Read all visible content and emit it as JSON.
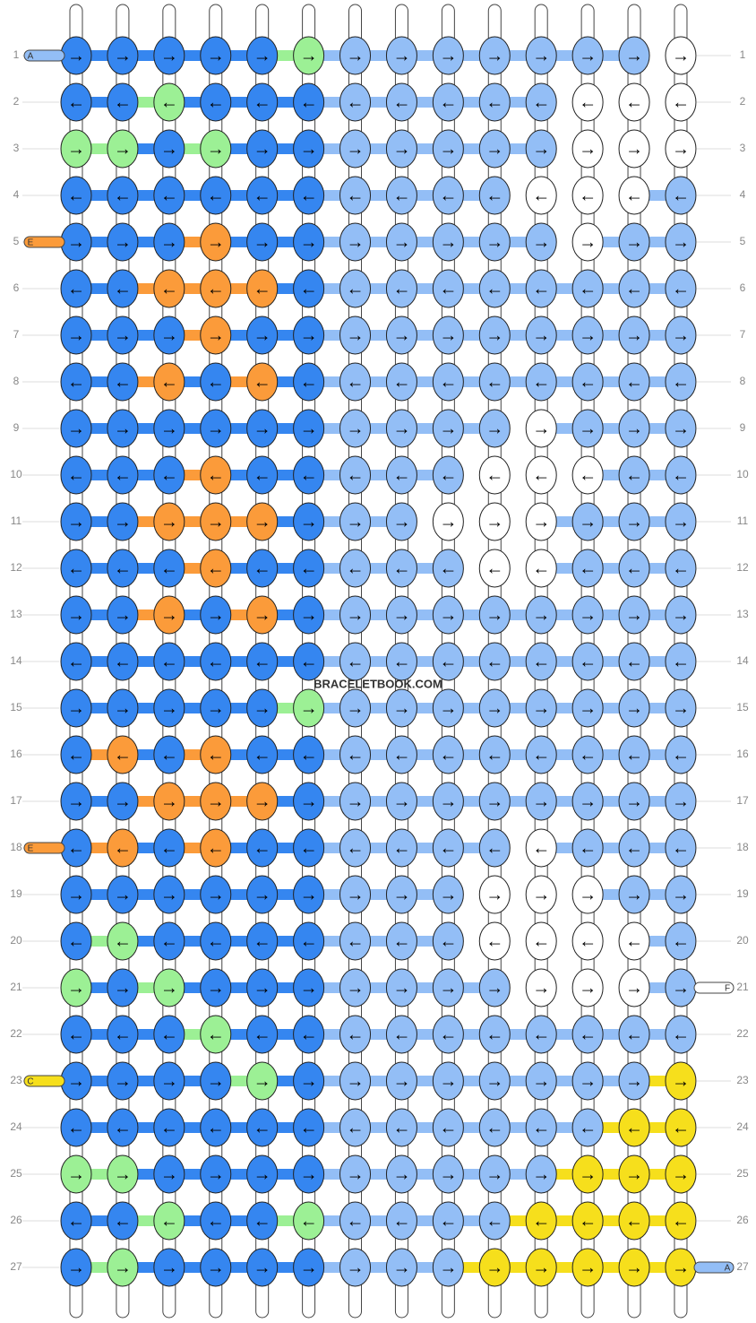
{
  "watermark": "BRACELETBOOK.COM",
  "palette": {
    "D": "#3586f0",
    "L": "#93bef6",
    "G": "#9cf095",
    "O": "#fb9b3a",
    "W": "#ffffff",
    "Y": "#f6df1c"
  },
  "rows": [
    {
      "number": 1,
      "arrow": "→",
      "knots": "DDDDDGLLLLLLLW"
    },
    {
      "number": 2,
      "arrow": "←",
      "knots": "DDGDDDLLLLLWWW"
    },
    {
      "number": 3,
      "arrow": "→",
      "knots": "GGDGDDLLLLLWWW"
    },
    {
      "number": 4,
      "arrow": "←",
      "knots": "DDDDDDLLLLWWWL"
    },
    {
      "number": 5,
      "arrow": "→",
      "knots": "DDDODDLLLLLWLL"
    },
    {
      "number": 6,
      "arrow": "←",
      "knots": "DDOOODLLLLLLLL"
    },
    {
      "number": 7,
      "arrow": "→",
      "knots": "DDDODDLLLLLLLL"
    },
    {
      "number": 8,
      "arrow": "←",
      "knots": "DDODODLLLLLLLL"
    },
    {
      "number": 9,
      "arrow": "→",
      "knots": "DDDDDDLLLLWLLL"
    },
    {
      "number": 10,
      "arrow": "←",
      "knots": "DDDODDLLLWWWLL"
    },
    {
      "number": 11,
      "arrow": "→",
      "knots": "DDOOODLLWWWLLL"
    },
    {
      "number": 12,
      "arrow": "←",
      "knots": "DDDODDLLLWWLLL"
    },
    {
      "number": 13,
      "arrow": "→",
      "knots": "DDODODLLLLLLLL"
    },
    {
      "number": 14,
      "arrow": "←",
      "knots": "DDDDDDLLLLLLLL"
    },
    {
      "number": 15,
      "arrow": "→",
      "knots": "DDDDDGLLLLLLLL"
    },
    {
      "number": 16,
      "arrow": "←",
      "knots": "DODODDLLLLLLLL"
    },
    {
      "number": 17,
      "arrow": "→",
      "knots": "DDOOODLLLLLLLL"
    },
    {
      "number": 18,
      "arrow": "←",
      "knots": "DODODDLLLLWLLL"
    },
    {
      "number": 19,
      "arrow": "→",
      "knots": "DDDDDDLLLWWWLL"
    },
    {
      "number": 20,
      "arrow": "←",
      "knots": "DGDDDDLLLWWWWL"
    },
    {
      "number": 21,
      "arrow": "→",
      "knots": "GDGDDDLLLLWWWL"
    },
    {
      "number": 22,
      "arrow": "←",
      "knots": "DDDGDDLLLLLLLL"
    },
    {
      "number": 23,
      "arrow": "→",
      "knots": "DDDDGDLLLLLLLY"
    },
    {
      "number": 24,
      "arrow": "←",
      "knots": "DDDDDDLLLLLLYY"
    },
    {
      "number": 25,
      "arrow": "→",
      "knots": "GGDDDDLLLLLYYY"
    },
    {
      "number": 26,
      "arrow": "←",
      "knots": "DDGDDGLLLLYYYY"
    },
    {
      "number": 27,
      "arrow": "→",
      "knots": "DGDDDDLLLYYYYY"
    }
  ],
  "left_strings": [
    {
      "row": 1,
      "label": "A",
      "color": "#93bef6"
    },
    {
      "row": 5,
      "label": "E",
      "color": "#fb9b3a"
    },
    {
      "row": 18,
      "label": "E",
      "color": "#fb9b3a"
    },
    {
      "row": 23,
      "label": "C",
      "color": "#f6df1c"
    }
  ],
  "right_strings": [
    {
      "row": 21,
      "label": "F",
      "color": "#ffffff"
    },
    {
      "row": 27,
      "label": "A",
      "color": "#93bef6"
    }
  ]
}
